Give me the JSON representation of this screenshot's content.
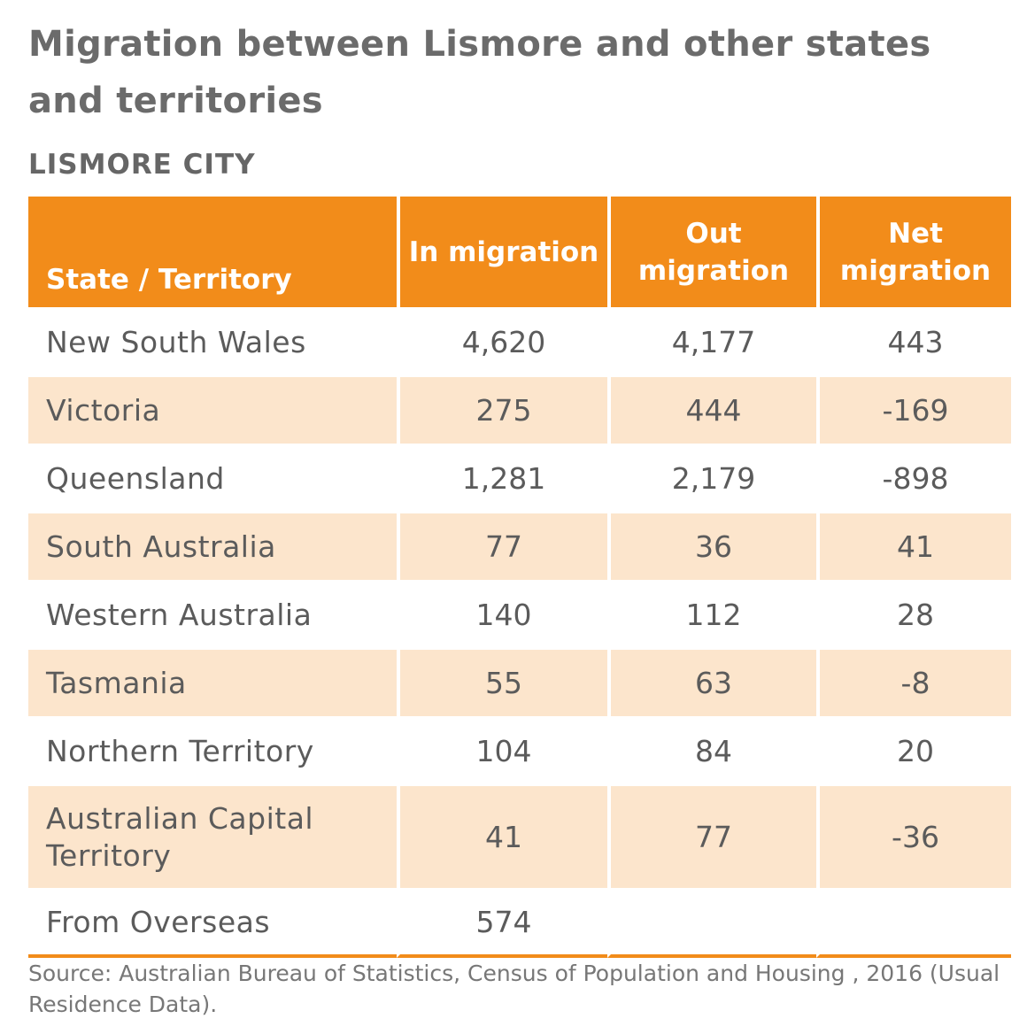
{
  "chart_data": {
    "type": "table",
    "title": "Migration between Lismore and other states and territories",
    "subtitle": "LISMORE CITY",
    "columns": [
      "State / Territory",
      "In migration",
      "Out migration",
      "Net migration"
    ],
    "rows": [
      {
        "state": "New South Wales",
        "in": "4,620",
        "out": "4,177",
        "net": "443"
      },
      {
        "state": "Victoria",
        "in": "275",
        "out": "444",
        "net": "-169"
      },
      {
        "state": "Queensland",
        "in": "1,281",
        "out": "2,179",
        "net": "-898"
      },
      {
        "state": "South Australia",
        "in": "77",
        "out": "36",
        "net": "41"
      },
      {
        "state": "Western Australia",
        "in": "140",
        "out": "112",
        "net": "28"
      },
      {
        "state": "Tasmania",
        "in": "55",
        "out": "63",
        "net": "-8"
      },
      {
        "state": "Northern Territory",
        "in": "104",
        "out": "84",
        "net": "20"
      },
      {
        "state": "Australian Capital Territory",
        "in": "41",
        "out": "77",
        "net": "-36"
      },
      {
        "state": "From Overseas",
        "in": "574",
        "out": "",
        "net": ""
      }
    ],
    "source": "Source: Australian Bureau of Statistics, Census of Population and Housing , 2016 (Usual Residence Data)."
  },
  "colors": {
    "header_bg": "#f28c1a",
    "shaded_row_bg": "#fce5cc",
    "title_text": "#6b6b6b"
  }
}
